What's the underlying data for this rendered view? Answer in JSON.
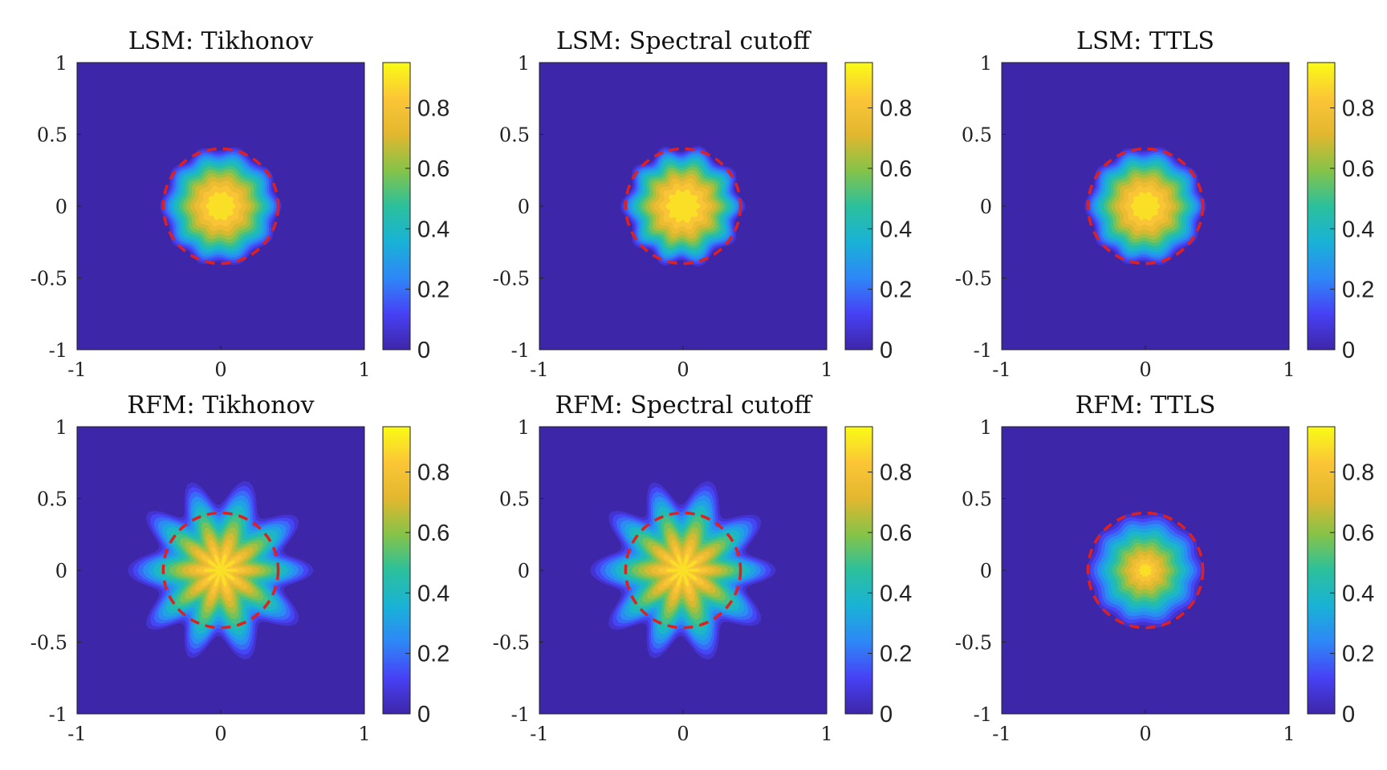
{
  "chart_data": [
    {
      "type": "heatmap",
      "title": "LSM: Tikhonov",
      "method": "LSM",
      "regularization": "Tikhonov",
      "xlim": [
        -1,
        1
      ],
      "ylim": [
        -1,
        1
      ],
      "x_ticks": [
        "-1",
        "0",
        "1"
      ],
      "y_ticks": [
        "1",
        "0.5",
        "0",
        "-0.5",
        "-1"
      ],
      "colorbar": {
        "range": [
          0,
          0.95
        ],
        "ticks": [
          "0.8",
          "0.6",
          "0.4",
          "0.2",
          "0"
        ]
      },
      "indicator": {
        "center": [
          0,
          0
        ],
        "peak": 0.95,
        "support_radius": 0.42,
        "lobes": 10,
        "lobe_amplitude": 0.02,
        "core_scale": 0.55
      },
      "true_boundary": {
        "shape": "circle",
        "center": [
          0,
          0
        ],
        "radius": 0.4,
        "style": "dashed",
        "color": "#e0201e"
      }
    },
    {
      "type": "heatmap",
      "title": "LSM: Spectral cutoff",
      "method": "LSM",
      "regularization": "Spectral cutoff",
      "xlim": [
        -1,
        1
      ],
      "ylim": [
        -1,
        1
      ],
      "x_ticks": [
        "-1",
        "0",
        "1"
      ],
      "y_ticks": [
        "1",
        "0.5",
        "0",
        "-0.5",
        "-1"
      ],
      "colorbar": {
        "range": [
          0,
          0.95
        ],
        "ticks": [
          "0.8",
          "0.6",
          "0.4",
          "0.2",
          "0"
        ]
      },
      "indicator": {
        "center": [
          0,
          0
        ],
        "peak": 0.95,
        "support_radius": 0.42,
        "lobes": 10,
        "lobe_amplitude": 0.03,
        "core_scale": 0.5
      },
      "true_boundary": {
        "shape": "circle",
        "center": [
          0,
          0
        ],
        "radius": 0.4,
        "style": "dashed",
        "color": "#e0201e"
      }
    },
    {
      "type": "heatmap",
      "title": "LSM: TTLS",
      "method": "LSM",
      "regularization": "TTLS",
      "xlim": [
        -1,
        1
      ],
      "ylim": [
        -1,
        1
      ],
      "x_ticks": [
        "-1",
        "0",
        "1"
      ],
      "y_ticks": [
        "1",
        "0.5",
        "0",
        "-0.5",
        "-1"
      ],
      "colorbar": {
        "range": [
          0,
          0.95
        ],
        "ticks": [
          "0.8",
          "0.6",
          "0.4",
          "0.2",
          "0"
        ]
      },
      "indicator": {
        "center": [
          0,
          0
        ],
        "peak": 0.95,
        "support_radius": 0.42,
        "lobes": 10,
        "lobe_amplitude": 0.02,
        "core_scale": 0.55
      },
      "true_boundary": {
        "shape": "circle",
        "center": [
          0,
          0
        ],
        "radius": 0.4,
        "style": "dashed",
        "color": "#e0201e"
      }
    },
    {
      "type": "heatmap",
      "title": "RFM: Tikhonov",
      "method": "RFM",
      "regularization": "Tikhonov",
      "xlim": [
        -1,
        1
      ],
      "ylim": [
        -1,
        1
      ],
      "x_ticks": [
        "-1",
        "0",
        "1"
      ],
      "y_ticks": [
        "1",
        "0.5",
        "0",
        "-0.5",
        "-1"
      ],
      "colorbar": {
        "range": [
          0,
          0.95
        ],
        "ticks": [
          "0.8",
          "0.6",
          "0.4",
          "0.2",
          "0"
        ]
      },
      "indicator": {
        "center": [
          0,
          0
        ],
        "peak": 0.95,
        "support_radius": 0.58,
        "lobes": 10,
        "lobe_amplitude": 0.1,
        "core_scale": 0.75
      },
      "true_boundary": {
        "shape": "circle",
        "center": [
          0,
          0
        ],
        "radius": 0.4,
        "style": "dashed",
        "color": "#e0201e"
      }
    },
    {
      "type": "heatmap",
      "title": "RFM: Spectral cutoff",
      "method": "RFM",
      "regularization": "Spectral cutoff",
      "xlim": [
        -1,
        1
      ],
      "ylim": [
        -1,
        1
      ],
      "x_ticks": [
        "-1",
        "0",
        "1"
      ],
      "y_ticks": [
        "1",
        "0.5",
        "0",
        "-0.5",
        "-1"
      ],
      "colorbar": {
        "range": [
          0,
          0.95
        ],
        "ticks": [
          "0.8",
          "0.6",
          "0.4",
          "0.2",
          "0"
        ]
      },
      "indicator": {
        "center": [
          0,
          0
        ],
        "peak": 0.95,
        "support_radius": 0.58,
        "lobes": 10,
        "lobe_amplitude": 0.1,
        "core_scale": 0.75
      },
      "true_boundary": {
        "shape": "circle",
        "center": [
          0,
          0
        ],
        "radius": 0.4,
        "style": "dashed",
        "color": "#e0201e"
      }
    },
    {
      "type": "heatmap",
      "title": "RFM: TTLS",
      "method": "RFM",
      "regularization": "TTLS",
      "xlim": [
        -1,
        1
      ],
      "ylim": [
        -1,
        1
      ],
      "x_ticks": [
        "-1",
        "0",
        "1"
      ],
      "y_ticks": [
        "1",
        "0.5",
        "0",
        "-0.5",
        "-1"
      ],
      "colorbar": {
        "range": [
          0,
          0.95
        ],
        "ticks": [
          "0.8",
          "0.6",
          "0.4",
          "0.2",
          "0"
        ]
      },
      "indicator": {
        "center": [
          0,
          0
        ],
        "peak": 0.95,
        "support_radius": 0.42,
        "lobes": 10,
        "lobe_amplitude": 0.015,
        "core_scale": 0.85
      },
      "true_boundary": {
        "shape": "circle",
        "center": [
          0,
          0
        ],
        "radius": 0.4,
        "style": "dashed",
        "color": "#e0201e"
      }
    }
  ],
  "colormap": {
    "name": "parula",
    "stops": [
      "#3e26a8",
      "#4741f5",
      "#2e87f7",
      "#19b2d6",
      "#2bc09c",
      "#86c348",
      "#e2b72f",
      "#fbc636",
      "#f9fb15"
    ],
    "background_color": "#3e26a8"
  }
}
